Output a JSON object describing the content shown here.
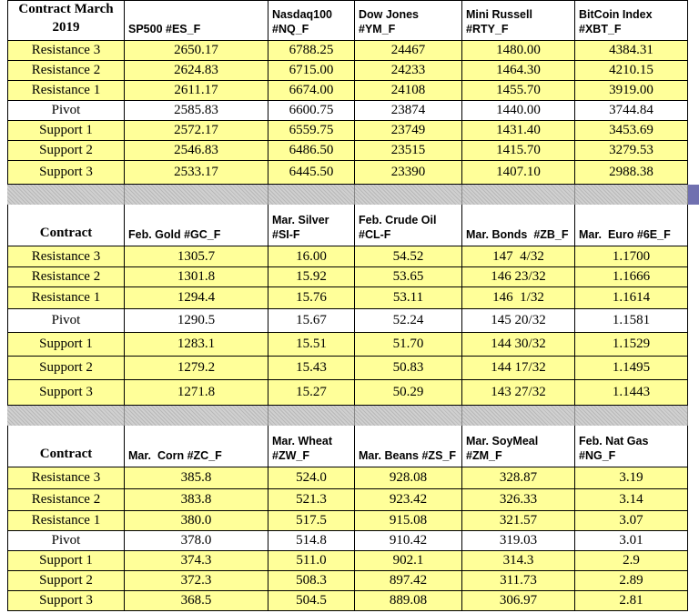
{
  "sections": [
    {
      "headers": [
        [
          "Contract March",
          "2019"
        ],
        [
          "SP500 #ES_F"
        ],
        [
          "Nasdaq100",
          "#NQ_F"
        ],
        [
          "Dow Jones",
          "#YM_F"
        ],
        [
          "Mini Russell",
          "#RTY_F"
        ],
        [
          "BitCoin Index",
          "#XBT_F"
        ]
      ],
      "rows": [
        [
          "Resistance 3",
          "2650.17",
          "6788.25",
          "24467",
          "1480.00",
          "4384.31"
        ],
        [
          "Resistance 2",
          "2624.83",
          "6715.00",
          "24233",
          "1464.30",
          "4210.15"
        ],
        [
          "Resistance 1",
          "2611.17",
          "6674.00",
          "24108",
          "1455.70",
          "3919.00"
        ],
        [
          "Pivot",
          "2585.83",
          "6600.75",
          "23874",
          "1440.00",
          "3744.84"
        ],
        [
          "Support 1",
          "2572.17",
          "6559.75",
          "23749",
          "1431.40",
          "3453.69"
        ],
        [
          "Support 2",
          "2546.83",
          "6486.50",
          "23515",
          "1415.70",
          "3279.53"
        ],
        [
          "Support 3",
          "2533.17",
          "6445.50",
          "23390",
          "1407.10",
          "2988.38"
        ]
      ]
    },
    {
      "headers": [
        [
          "Contract"
        ],
        [
          "Feb. Gold #GC_F"
        ],
        [
          "Mar. Silver",
          "#SI-F"
        ],
        [
          "Feb. Crude Oil",
          "#CL-F"
        ],
        [
          "Mar. Bonds  #ZB_F"
        ],
        [
          "Mar.  Euro #6E_F"
        ]
      ],
      "rows": [
        [
          "Resistance 3",
          "1305.7",
          "16.00",
          "54.52",
          "147  4/32",
          "1.1700"
        ],
        [
          "Resistance 2",
          "1301.8",
          "15.92",
          "53.65",
          "146 23/32",
          "1.1666"
        ],
        [
          "Resistance 1",
          "1294.4",
          "15.76",
          "53.11",
          "146  1/32",
          "1.1614"
        ],
        [
          "Pivot",
          "1290.5",
          "15.67",
          "52.24",
          "145 20/32",
          "1.1581"
        ],
        [
          "Support 1",
          "1283.1",
          "15.51",
          "51.70",
          "144 30/32",
          "1.1529"
        ],
        [
          "Support 2",
          "1279.2",
          "15.43",
          "50.83",
          "144 17/32",
          "1.1495"
        ],
        [
          "Support 3",
          "1271.8",
          "15.27",
          "50.29",
          "143 27/32",
          "1.1443"
        ]
      ]
    },
    {
      "headers": [
        [
          "Contract"
        ],
        [
          "Mar.  Corn #ZC_F"
        ],
        [
          "Mar. Wheat",
          "#ZW_F"
        ],
        [
          "Mar. Beans #ZS_F"
        ],
        [
          "Mar. SoyMeal",
          "#ZM_F"
        ],
        [
          "Feb. Nat Gas",
          "#NG_F"
        ]
      ],
      "rows": [
        [
          "Resistance 3",
          "385.8",
          "524.0",
          "928.08",
          "328.87",
          "3.19"
        ],
        [
          "Resistance 2",
          "383.8",
          "521.3",
          "923.42",
          "326.33",
          "3.14"
        ],
        [
          "Resistance 1",
          "380.0",
          "517.5",
          "915.08",
          "321.57",
          "3.07"
        ],
        [
          "Pivot",
          "378.0",
          "514.8",
          "910.42",
          "319.03",
          "3.01"
        ],
        [
          "Support 1",
          "374.3",
          "511.0",
          "902.1",
          "314.3",
          "2.9"
        ],
        [
          "Support 2",
          "372.3",
          "508.3",
          "897.42",
          "311.73",
          "2.89"
        ],
        [
          "Support 3",
          "368.5",
          "504.5",
          "889.08",
          "306.97",
          "2.81"
        ]
      ]
    }
  ]
}
